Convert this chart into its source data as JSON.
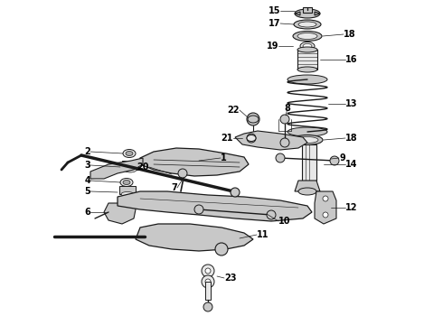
{
  "background_color": "#ffffff",
  "fig_width": 4.9,
  "fig_height": 3.6,
  "dpi": 100,
  "font_size": 7,
  "line_color": "#1a1a1a",
  "fill_light": "#e8e8e8",
  "fill_mid": "#c8c8c8",
  "fill_dark": "#aaaaaa"
}
